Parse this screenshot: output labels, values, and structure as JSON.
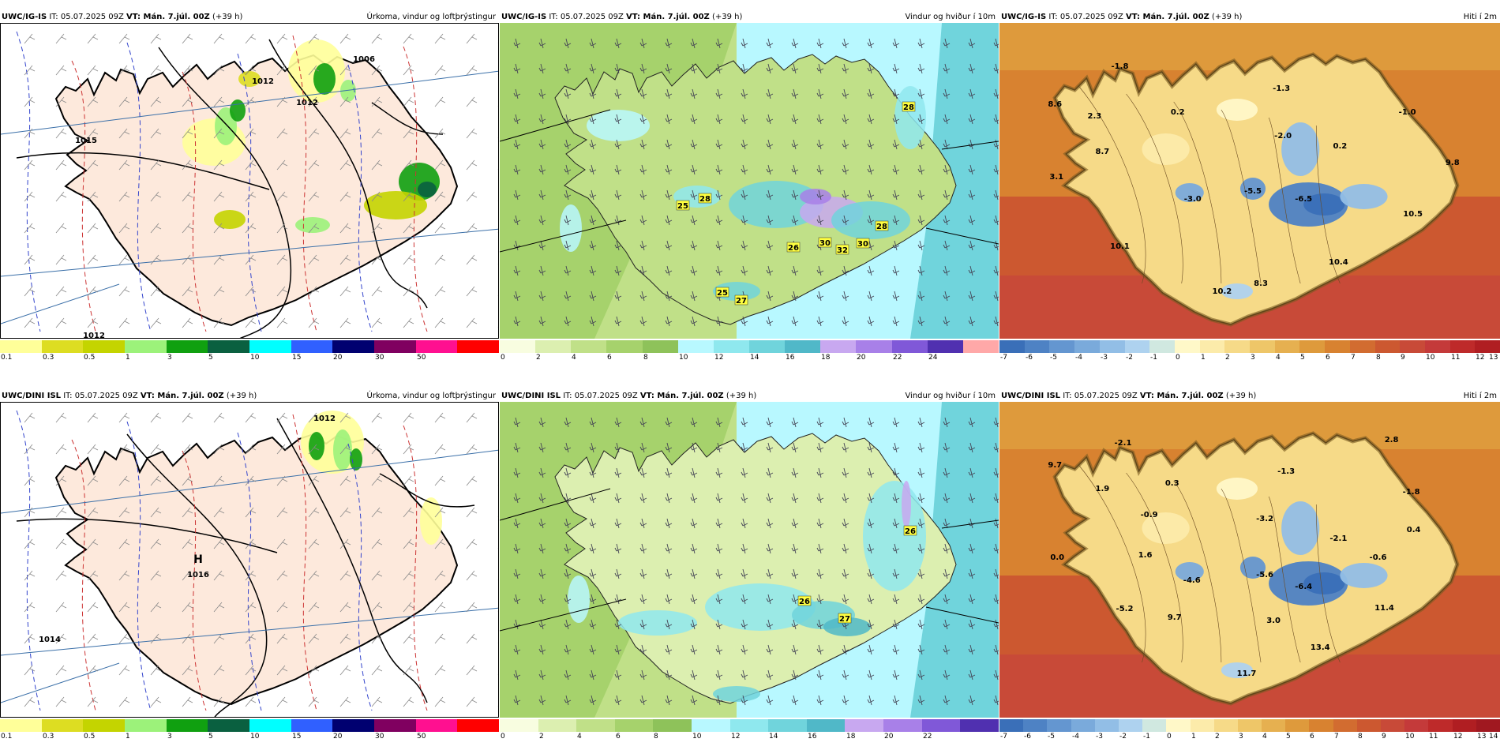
{
  "panels": [
    {
      "id": "p1",
      "model": "UWC/IG-IS",
      "it_label": "IT:",
      "it": "05.07.2025 09Z",
      "vt_label": "VT:",
      "vt": "Mán. 7.júl. 00Z",
      "lead": "(+39 h)",
      "field": "Úrkoma, vindur og loftþrýstingur",
      "kind": "precip",
      "colorbar": {
        "colors": [
          "#ffff99",
          "#dddd22",
          "#c4d400",
          "#9cf27a",
          "#10a010",
          "#0a6040",
          "#00ffff",
          "#3060ff",
          "#000070",
          "#800060",
          "#ff1090",
          "#ff0000"
        ],
        "ticks": [
          "0.1",
          "0.3",
          "0.5",
          "1",
          "3",
          "5",
          "10",
          "15",
          "20",
          "30",
          "50",
          ""
        ]
      },
      "labels": [
        {
          "t": "1015"
        },
        {
          "t": "1006"
        },
        {
          "t": "1012"
        },
        {
          "t": "1012"
        },
        {
          "t": "1012"
        }
      ]
    },
    {
      "id": "p2",
      "model": "UWC/IG-IS",
      "it_label": "IT:",
      "it": "05.07.2025 09Z",
      "vt_label": "VT:",
      "vt": "Mán. 7.júl. 00Z",
      "lead": "(+39 h)",
      "field": "Vindur og hviður í 10m",
      "kind": "wind",
      "colorbar": {
        "colors": [
          "#f8fde0",
          "#dcefb0",
          "#c0e088",
          "#a6d26c",
          "#8ec25a",
          "#b8f8ff",
          "#8fe8ee",
          "#70d4dc",
          "#50b8c8",
          "#c8a8f0",
          "#a880e8",
          "#8058d8",
          "#5030b0",
          "#ffa8a8"
        ],
        "ticks": [
          "0",
          "2",
          "4",
          "6",
          "8",
          "10",
          "12",
          "14",
          "16",
          "18",
          "20",
          "22",
          "24",
          ""
        ]
      },
      "labels": [
        {
          "t": "28"
        },
        {
          "t": "28"
        },
        {
          "t": "25"
        },
        {
          "t": "26"
        },
        {
          "t": "30"
        },
        {
          "t": "32"
        },
        {
          "t": "30"
        },
        {
          "t": "28"
        },
        {
          "t": "25"
        },
        {
          "t": "27"
        }
      ]
    },
    {
      "id": "p3",
      "model": "UWC/IG-IS",
      "it_label": "IT:",
      "it": "05.07.2025 09Z",
      "vt_label": "VT:",
      "vt": "Mán. 7.júl. 00Z",
      "lead": "(+39 h)",
      "field": "Hiti í 2m",
      "kind": "temp",
      "colorbar": {
        "colors": [
          "#3a6fb8",
          "#4e82c4",
          "#6496d0",
          "#7aaadb",
          "#92bee6",
          "#aed2ef",
          "#d0e8e0",
          "#fff8c8",
          "#fcebaa",
          "#f6da88",
          "#eec668",
          "#e6b050",
          "#de9a3c",
          "#d88230",
          "#d26c30",
          "#cc5830",
          "#c84a38",
          "#c43a3a",
          "#be2a2a",
          "#b01e22"
        ],
        "ticks": [
          "-7",
          "-6",
          "-5",
          "-4",
          "-3",
          "-2",
          "-1",
          "0",
          "1",
          "2",
          "3",
          "4",
          "5",
          "6",
          "7",
          "8",
          "9",
          "10",
          "11",
          "12",
          "13"
        ]
      },
      "labels": [
        {
          "t": "-1.8"
        },
        {
          "t": "8.6"
        },
        {
          "t": "2.3"
        },
        {
          "t": "8.7"
        },
        {
          "t": "3.1"
        },
        {
          "t": "0.2"
        },
        {
          "t": "-1.3"
        },
        {
          "t": "-2.0"
        },
        {
          "t": "0.2"
        },
        {
          "t": "-1.0"
        },
        {
          "t": "9.8"
        },
        {
          "t": "-3.0"
        },
        {
          "t": "-5.5"
        },
        {
          "t": "-6.5"
        },
        {
          "t": "10.5"
        },
        {
          "t": "10.1"
        },
        {
          "t": "10.4"
        },
        {
          "t": "8.3"
        },
        {
          "t": "10.2"
        }
      ]
    },
    {
      "id": "p4",
      "model": "UWC/DINI ISL",
      "it_label": "IT:",
      "it": "05.07.2025 09Z",
      "vt_label": "VT:",
      "vt": "Mán. 7.júl. 00Z",
      "lead": "(+39 h)",
      "field": "Úrkoma, vindur og loftþrýstingur",
      "kind": "precip",
      "colorbar": {
        "colors": [
          "#ffff99",
          "#dddd22",
          "#c4d400",
          "#9cf27a",
          "#10a010",
          "#0a6040",
          "#00ffff",
          "#3060ff",
          "#000070",
          "#800060",
          "#ff1090",
          "#ff0000"
        ],
        "ticks": [
          "0.1",
          "0.3",
          "0.5",
          "1",
          "3",
          "5",
          "10",
          "15",
          "20",
          "30",
          "50",
          ""
        ]
      },
      "labels": [
        {
          "t": "H"
        },
        {
          "t": "1016"
        },
        {
          "t": "1012"
        },
        {
          "t": "1014"
        }
      ]
    },
    {
      "id": "p5",
      "model": "UWC/DINI ISL",
      "it_label": "IT:",
      "it": "05.07.2025 09Z",
      "vt_label": "VT:",
      "vt": "Mán. 7.júl. 00Z",
      "lead": "(+39 h)",
      "field": "Vindur og hviður í 10m",
      "kind": "wind",
      "colorbar": {
        "colors": [
          "#f8fde0",
          "#dcefb0",
          "#c0e088",
          "#a6d26c",
          "#8ec25a",
          "#b8f8ff",
          "#8fe8ee",
          "#70d4dc",
          "#50b8c8",
          "#c8a8f0",
          "#a880e8",
          "#8058d8",
          "#5030b0"
        ],
        "ticks": [
          "0",
          "2",
          "4",
          "6",
          "8",
          "10",
          "12",
          "14",
          "16",
          "18",
          "20",
          "22",
          ""
        ]
      },
      "labels": [
        {
          "t": "26"
        },
        {
          "t": "26"
        },
        {
          "t": "27"
        }
      ]
    },
    {
      "id": "p6",
      "model": "UWC/DINI ISL",
      "it_label": "IT:",
      "it": "05.07.2025 09Z",
      "vt_label": "VT:",
      "vt": "Mán. 7.júl. 00Z",
      "lead": "(+39 h)",
      "field": "Hiti í 2m",
      "kind": "temp",
      "colorbar": {
        "colors": [
          "#3a6fb8",
          "#4e82c4",
          "#6496d0",
          "#7aaadb",
          "#92bee6",
          "#aed2ef",
          "#d0e8e0",
          "#fff8c8",
          "#fcebaa",
          "#f6da88",
          "#eec668",
          "#e6b050",
          "#de9a3c",
          "#d88230",
          "#d26c30",
          "#cc5830",
          "#c84a38",
          "#c43a3a",
          "#be2a2a",
          "#b01e22",
          "#a01820"
        ],
        "ticks": [
          "-7",
          "-6",
          "-5",
          "-4",
          "-3",
          "-2",
          "-1",
          "0",
          "1",
          "2",
          "3",
          "4",
          "5",
          "6",
          "7",
          "8",
          "9",
          "10",
          "11",
          "12",
          "13",
          "14"
        ]
      },
      "labels": [
        {
          "t": "-2.1"
        },
        {
          "t": "2.8"
        },
        {
          "t": "9.7"
        },
        {
          "t": "1.9"
        },
        {
          "t": "0.3"
        },
        {
          "t": "-1.3"
        },
        {
          "t": "-1.8"
        },
        {
          "t": "-0.9"
        },
        {
          "t": "-3.2"
        },
        {
          "t": "0.0"
        },
        {
          "t": "1.6"
        },
        {
          "t": "-2.1"
        },
        {
          "t": "0.4"
        },
        {
          "t": "-4.6"
        },
        {
          "t": "-5.6"
        },
        {
          "t": "-6.4"
        },
        {
          "t": "-0.6"
        },
        {
          "t": "-5.2"
        },
        {
          "t": "9.7"
        },
        {
          "t": "3.0"
        },
        {
          "t": "11.4"
        },
        {
          "t": "13.4"
        },
        {
          "t": "11.7"
        }
      ]
    }
  ]
}
